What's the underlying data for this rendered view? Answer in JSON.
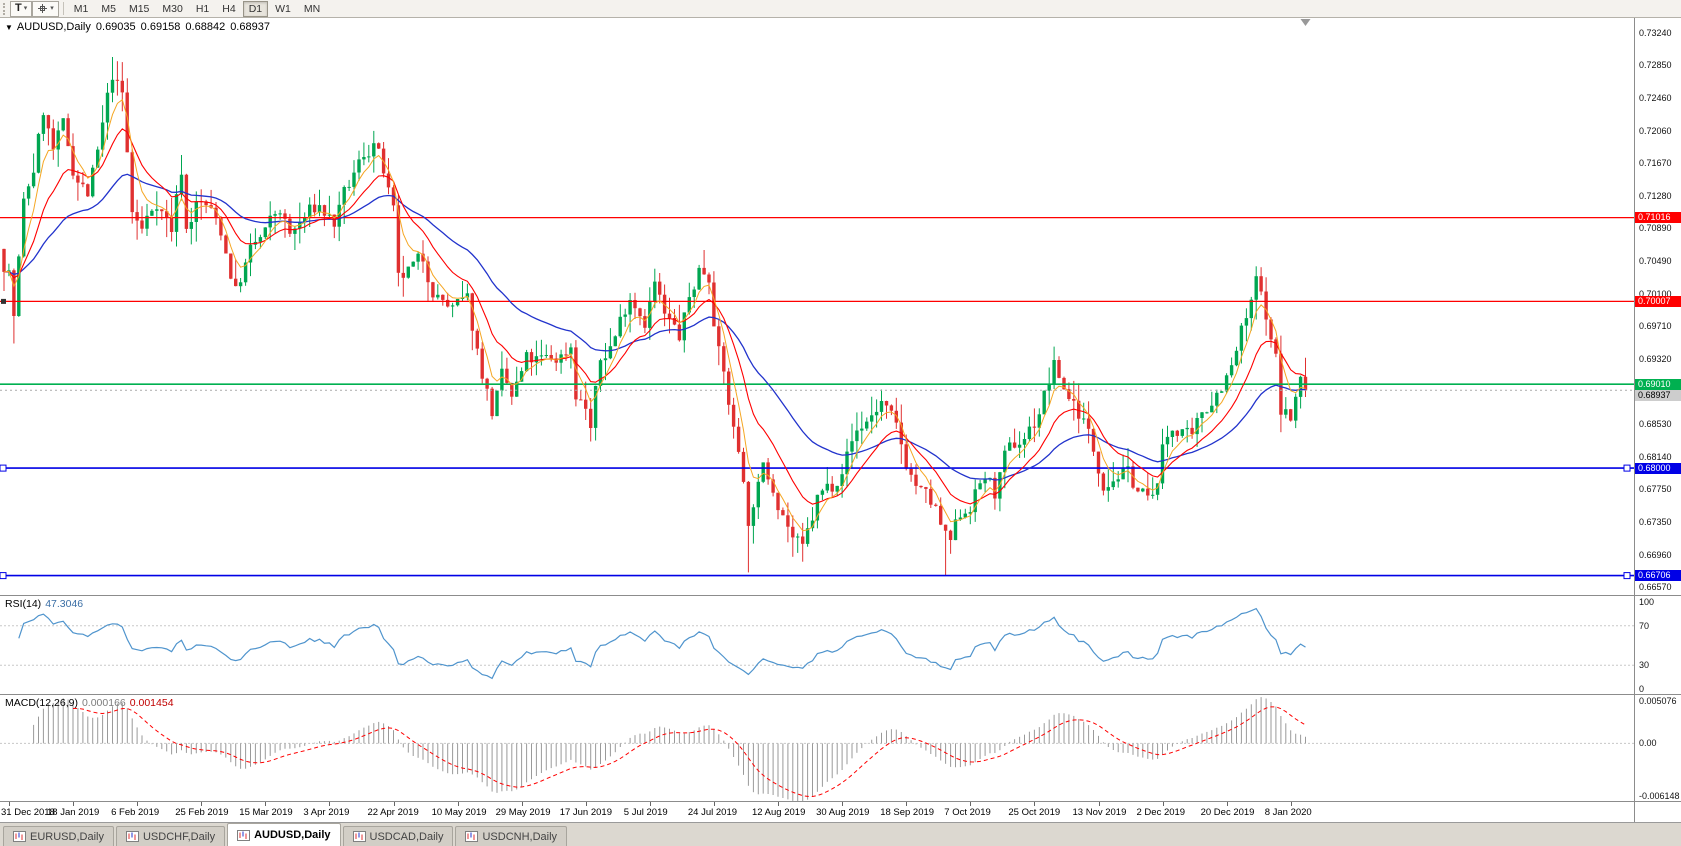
{
  "icons": {
    "collapse_arrow": "▼",
    "dropdown_caret": "▾"
  },
  "colors": {
    "up": "#00A651",
    "down": "#E03030",
    "ma_fast": "#F5A623",
    "ma_mid": "#FF0000",
    "ma_slow": "#2233CC",
    "rsi": "#4F94CD",
    "macd_hist": "#9A9A9A",
    "macd_signal": "#FF0000"
  },
  "toolbar": {
    "text_tool_label": "T",
    "timeframes": [
      "M1",
      "M5",
      "M15",
      "M30",
      "H1",
      "H4",
      "D1",
      "W1",
      "MN"
    ],
    "active_timeframe": "D1"
  },
  "main_chart": {
    "title": "AUDUSD,Daily",
    "ohlc": {
      "open": "0.69035",
      "high": "0.69158",
      "low": "0.68842",
      "close": "0.68937"
    },
    "price_domain": {
      "max": 0.7342,
      "min": 0.6646
    },
    "price_axis_labels": [
      "0.73240",
      "0.72850",
      "0.72460",
      "0.72060",
      "0.71670",
      "0.71280",
      "0.70890",
      "0.70490",
      "0.70100",
      "0.69710",
      "0.69320",
      "0.68930",
      "0.68530",
      "0.68140",
      "0.67750",
      "0.67350",
      "0.66960",
      "0.66570"
    ],
    "hlines": [
      {
        "price": 0.71016,
        "label": "0.71016",
        "color": "#FF0000",
        "width": 1.2
      },
      {
        "price": 0.70007,
        "label": "0.70007",
        "color": "#FF0000",
        "width": 1.2,
        "left_mark": true
      },
      {
        "price": 0.6901,
        "label": "0.69010",
        "color": "#00B050",
        "width": 1.6
      },
      {
        "price": 0.68,
        "label": "0.68000",
        "color": "#0000E6",
        "width": 1.6,
        "handles": true
      },
      {
        "price": 0.66706,
        "label": "0.66706",
        "color": "#0000E6",
        "width": 1.6,
        "handles": true
      }
    ],
    "current_price": {
      "value": 0.68937,
      "label": "0.68937",
      "bg": "#CDCDCD"
    }
  },
  "chart_data": {
    "type": "candlestick",
    "symbol": "AUDUSD",
    "timeframe": "Daily",
    "n_candles": 265,
    "seed": 7,
    "ma_periods": {
      "fast": 5,
      "mid": 13,
      "slow": 34
    },
    "close_anchors": [
      [
        0,
        0.7049
      ],
      [
        1,
        0.704
      ],
      [
        2,
        0.6985
      ],
      [
        4,
        0.7115
      ],
      [
        6,
        0.716
      ],
      [
        8,
        0.723
      ],
      [
        10,
        0.718
      ],
      [
        12,
        0.7205
      ],
      [
        14,
        0.716
      ],
      [
        17,
        0.713
      ],
      [
        19,
        0.7175
      ],
      [
        22,
        0.727
      ],
      [
        24,
        0.7245
      ],
      [
        26,
        0.7105
      ],
      [
        28,
        0.7085
      ],
      [
        31,
        0.7125
      ],
      [
        34,
        0.709
      ],
      [
        36,
        0.716
      ],
      [
        37,
        0.709
      ],
      [
        39,
        0.712
      ],
      [
        41,
        0.7115
      ],
      [
        44,
        0.7085
      ],
      [
        47,
        0.7015
      ],
      [
        50,
        0.706
      ],
      [
        53,
        0.708
      ],
      [
        56,
        0.711
      ],
      [
        58,
        0.7077
      ],
      [
        61,
        0.71
      ],
      [
        64,
        0.7115
      ],
      [
        67,
        0.7095
      ],
      [
        70,
        0.7135
      ],
      [
        73,
        0.7175
      ],
      [
        75,
        0.7195
      ],
      [
        77,
        0.7155
      ],
      [
        79,
        0.71
      ],
      [
        80,
        0.7015
      ],
      [
        82,
        0.703
      ],
      [
        85,
        0.7045
      ],
      [
        88,
        0.701
      ],
      [
        91,
        0.699
      ],
      [
        94,
        0.6995
      ],
      [
        96,
        0.694
      ],
      [
        99,
        0.687
      ],
      [
        101,
        0.6905
      ],
      [
        103,
        0.688
      ],
      [
        106,
        0.6925
      ],
      [
        110,
        0.6925
      ],
      [
        113,
        0.6935
      ],
      [
        115,
        0.695
      ],
      [
        116,
        0.6895
      ],
      [
        118,
        0.6875
      ],
      [
        119,
        0.685
      ],
      [
        121,
        0.6925
      ],
      [
        124,
        0.696
      ],
      [
        127,
        0.7013
      ],
      [
        130,
        0.6985
      ],
      [
        132,
        0.7025
      ],
      [
        134,
        0.698
      ],
      [
        137,
        0.6955
      ],
      [
        139,
        0.7
      ],
      [
        141,
        0.704
      ],
      [
        143,
        0.7035
      ],
      [
        145,
        0.6945
      ],
      [
        147,
        0.688
      ],
      [
        148,
        0.6845
      ],
      [
        150,
        0.6795
      ],
      [
        151,
        0.673
      ],
      [
        152,
        0.6763
      ],
      [
        154,
        0.6795
      ],
      [
        156,
        0.678
      ],
      [
        158,
        0.6755
      ],
      [
        160,
        0.672
      ],
      [
        162,
        0.6695
      ],
      [
        164,
        0.6735
      ],
      [
        165,
        0.676
      ],
      [
        168,
        0.678
      ],
      [
        170,
        0.681
      ],
      [
        173,
        0.6845
      ],
      [
        176,
        0.6865
      ],
      [
        178,
        0.688
      ],
      [
        181,
        0.684
      ],
      [
        183,
        0.6805
      ],
      [
        186,
        0.677
      ],
      [
        189,
        0.6745
      ],
      [
        191,
        0.671
      ],
      [
        192,
        0.6705
      ],
      [
        194,
        0.674
      ],
      [
        197,
        0.677
      ],
      [
        199,
        0.679
      ],
      [
        201,
        0.677
      ],
      [
        203,
        0.6805
      ],
      [
        206,
        0.683
      ],
      [
        209,
        0.6855
      ],
      [
        212,
        0.6905
      ],
      [
        213,
        0.692
      ],
      [
        215,
        0.6895
      ],
      [
        217,
        0.688
      ],
      [
        219,
        0.686
      ],
      [
        221,
        0.682
      ],
      [
        223,
        0.679
      ],
      [
        226,
        0.68
      ],
      [
        228,
        0.679
      ],
      [
        230,
        0.6775
      ],
      [
        233,
        0.6755
      ],
      [
        235,
        0.682
      ],
      [
        237,
        0.6845
      ],
      [
        239,
        0.685
      ],
      [
        241,
        0.6825
      ],
      [
        243,
        0.686
      ],
      [
        245,
        0.6885
      ],
      [
        247,
        0.6905
      ],
      [
        249,
        0.692
      ],
      [
        251,
        0.696
      ],
      [
        253,
        0.699
      ],
      [
        254,
        0.7022
      ],
      [
        255,
        0.7
      ],
      [
        256,
        0.6985
      ],
      [
        257,
        0.695
      ],
      [
        258,
        0.6935
      ],
      [
        259,
        0.6865
      ],
      [
        260,
        0.687
      ],
      [
        261,
        0.6855
      ],
      [
        262,
        0.688
      ],
      [
        263,
        0.691
      ],
      [
        264,
        0.68937
      ]
    ],
    "wick_events": [
      {
        "idx": 2,
        "low": 0.695
      },
      {
        "idx": 22,
        "high": 0.7295
      },
      {
        "idx": 75,
        "high": 0.7206
      },
      {
        "idx": 99,
        "low": 0.68585
      },
      {
        "idx": 119,
        "low": 0.6832
      },
      {
        "idx": 151,
        "low": 0.66744
      },
      {
        "idx": 162,
        "low": 0.66889
      },
      {
        "idx": 191,
        "low": 0.66706
      },
      {
        "idx": 254,
        "high": 0.70322
      },
      {
        "idx": 259,
        "low": 0.6849
      }
    ],
    "date_labels": [
      "31 Dec 2018",
      "18 Jan 2019",
      "6 Feb 2019",
      "25 Feb 2019",
      "15 Mar 2019",
      "3 Apr 2019",
      "22 Apr 2019",
      "10 May 2019",
      "29 May 2019",
      "17 Jun 2019",
      "5 Jul 2019",
      "24 Jul 2019",
      "12 Aug 2019",
      "30 Aug 2019",
      "18 Sep 2019",
      "7 Oct 2019",
      "25 Oct 2019",
      "13 Nov 2019",
      "2 Dec 2019",
      "20 Dec 2019",
      "8 Jan 2020"
    ],
    "first_label_index": 1,
    "label_every": 13
  },
  "rsi_panel": {
    "name": "RSI(14)",
    "value": "47.3046",
    "axis_labels": [
      {
        "label": "100",
        "value": 100
      },
      {
        "label": "70",
        "value": 70
      },
      {
        "label": "30",
        "value": 30
      },
      {
        "label": "0",
        "value": 0
      }
    ],
    "levels": [
      70,
      30
    ],
    "domain": {
      "max": 100,
      "min": 0
    }
  },
  "macd_panel": {
    "name": "MACD(12,26,9)",
    "value_main": "0.000166",
    "value_signal": "0.001454",
    "axis_labels": [
      {
        "label": "0.005076",
        "value": 0.005076
      },
      {
        "label": "0.00",
        "value": 0
      },
      {
        "label": "-0.006148",
        "value": -0.006148
      }
    ],
    "domain": {
      "max": 0.005076,
      "min": -0.006148
    }
  },
  "tabs": [
    {
      "label": "EURUSD,Daily",
      "active": false
    },
    {
      "label": "USDCHF,Daily",
      "active": false
    },
    {
      "label": "AUDUSD,Daily",
      "active": true
    },
    {
      "label": "USDCAD,Daily",
      "active": false
    },
    {
      "label": "USDCNH,Daily",
      "active": false
    }
  ]
}
